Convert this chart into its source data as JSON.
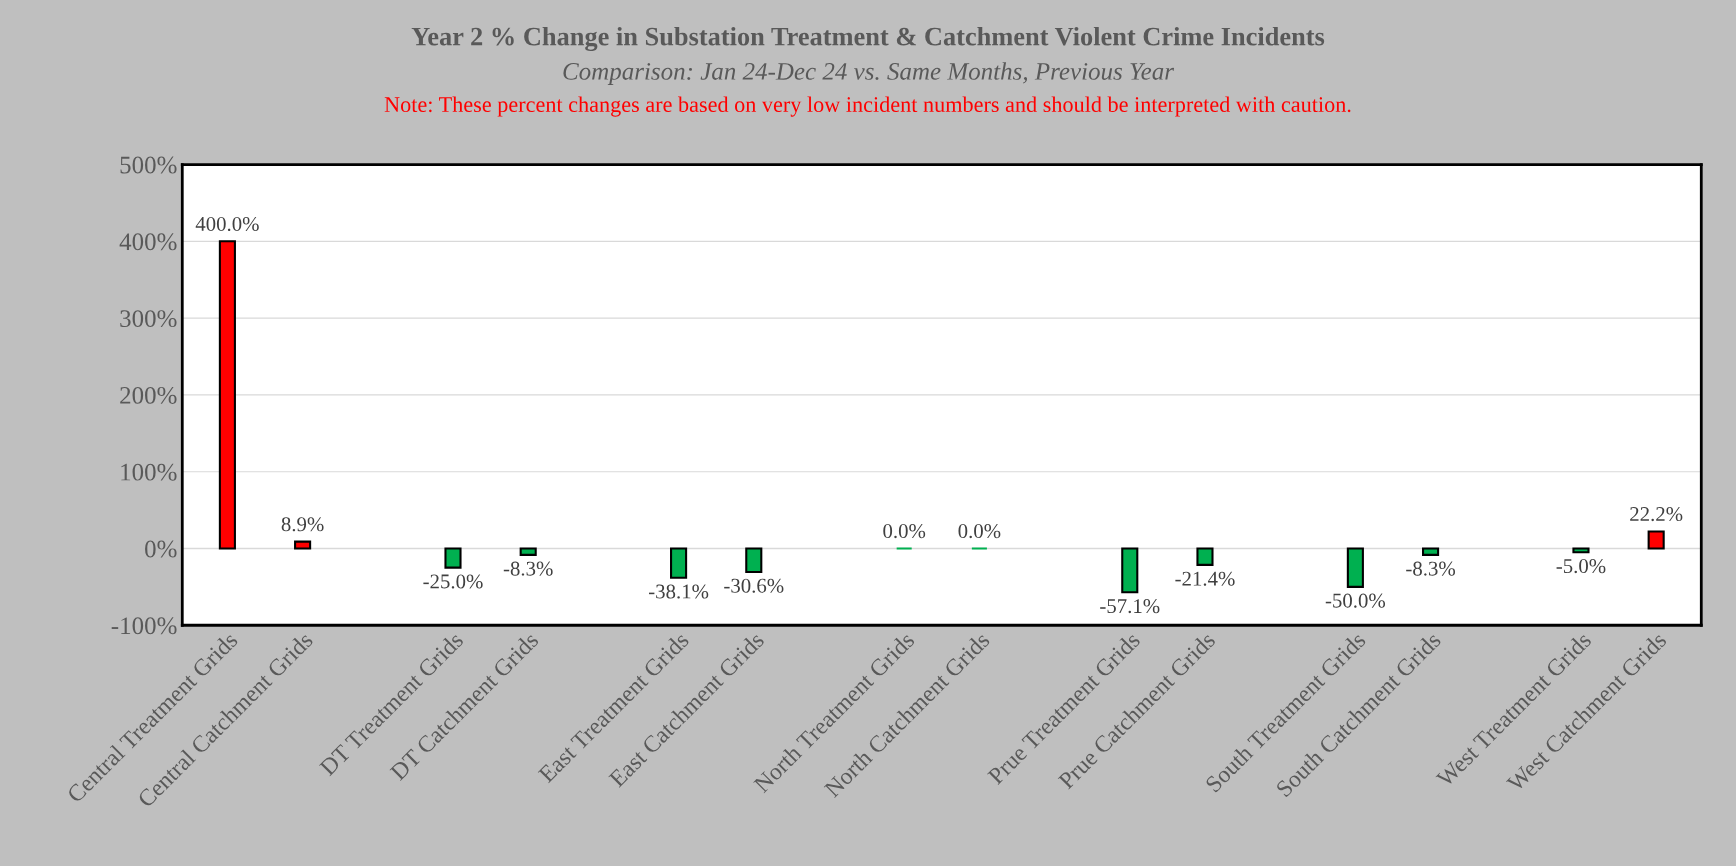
{
  "chart_data": {
    "type": "bar",
    "title": "Year 2 % Change in Substation Treatment & Catchment Violent Crime Incidents",
    "subtitle": "Comparison: Jan 24-Dec 24 vs. Same Months, Previous Year",
    "annotations": [
      "Note: These percent changes are based on very low incident numbers and should be interpreted with caution."
    ],
    "categories": [
      "Central Treatment Grids",
      "Central Catchment Grids",
      null,
      "DT Treatment Grids",
      "DT Catchment Grids",
      null,
      "East Treatment Grids",
      "East Catchment Grids",
      null,
      "North Treatment Grids",
      "North Catchment Grids",
      null,
      "Prue Treatment Grids",
      "Prue Catchment Grids",
      null,
      "South Treatment Grids",
      "South Catchment Grids",
      null,
      "West Treatment Grids",
      "West Catchment Grids"
    ],
    "values": [
      400.0,
      8.9,
      null,
      -25.0,
      -8.3,
      null,
      -38.1,
      -30.6,
      null,
      0.0,
      0.0,
      null,
      -57.1,
      -21.4,
      null,
      -50.0,
      -8.3,
      null,
      -5.0,
      22.2
    ],
    "value_labels": [
      "400.0%",
      "8.9%",
      null,
      "-25.0%",
      "-8.3%",
      null,
      "-38.1%",
      "-30.6%",
      null,
      "0.0%",
      "0.0%",
      null,
      "-57.1%",
      "-21.4%",
      null,
      "-50.0%",
      "-8.3%",
      null,
      "-5.0%",
      "22.2%"
    ],
    "colors": [
      "#ff0000",
      "#ff0000",
      "#00b050",
      "#00b050",
      "#00b050",
      "#00b050",
      "#00b050",
      "#00b050",
      "#00b050",
      "#00b050",
      "#00b050",
      "#00b050",
      "#00b050",
      "#00b050",
      "#00b050",
      "#00b050",
      "#00b050",
      "#00b050",
      "#00b050",
      "#ff0000"
    ],
    "ylim": [
      -100,
      500
    ],
    "yticks": [
      {
        "value": -100,
        "label": "-100%"
      },
      {
        "value": 0,
        "label": "0%"
      },
      {
        "value": 100,
        "label": "100%"
      },
      {
        "value": 200,
        "label": "200%"
      },
      {
        "value": 300,
        "label": "300%"
      },
      {
        "value": 400,
        "label": "400%"
      },
      {
        "value": 500,
        "label": "500%"
      }
    ],
    "grid": "y"
  }
}
